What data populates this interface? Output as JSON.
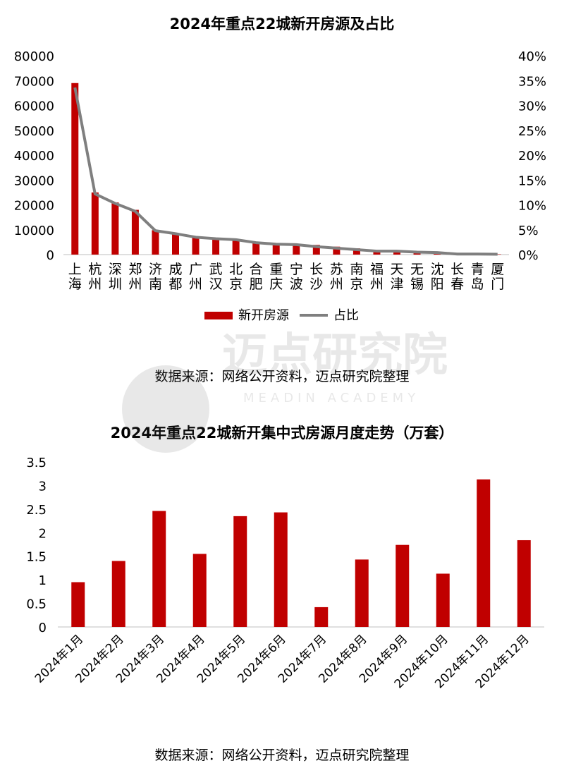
{
  "chart_data": [
    {
      "type": "bar",
      "title": "2024年重点22城新开房源及占比",
      "categories": [
        "上海",
        "杭州",
        "深圳",
        "郑州",
        "济南",
        "成都",
        "广州",
        "武汉",
        "北京",
        "合肥",
        "重庆",
        "宁波",
        "长沙",
        "苏州",
        "南京",
        "福州",
        "天津",
        "无锡",
        "沈阳",
        "长春",
        "青岛",
        "厦门"
      ],
      "series": [
        {
          "name": "新开房源",
          "type": "bar",
          "axis": "left",
          "color": "#c00000",
          "values": [
            69000,
            25000,
            21000,
            18000,
            9800,
            8500,
            7200,
            6500,
            6200,
            4900,
            4300,
            4200,
            3900,
            3200,
            2500,
            1700,
            1400,
            1000,
            800,
            300,
            200,
            150
          ]
        },
        {
          "name": "占比",
          "type": "line",
          "axis": "right",
          "color": "#7f7f7f",
          "values": [
            33.6,
            12.2,
            10.3,
            8.7,
            4.8,
            4.2,
            3.5,
            3.2,
            3.0,
            2.4,
            2.1,
            2.0,
            1.6,
            1.3,
            1.0,
            0.7,
            0.7,
            0.5,
            0.4,
            0.1,
            0.1,
            0.07
          ]
        }
      ],
      "y_ticks": [
        "0",
        "10000",
        "20000",
        "30000",
        "40000",
        "50000",
        "60000",
        "70000",
        "80000"
      ],
      "y2_ticks": [
        "0%",
        "5%",
        "10%",
        "15%",
        "20%",
        "25%",
        "30%",
        "35%",
        "40%"
      ],
      "ylim": [
        0,
        80000
      ],
      "y2lim": [
        0,
        40
      ],
      "grid": false,
      "legend_position": "bottom"
    },
    {
      "type": "bar",
      "title": "2024年重点22城新开集中式房源月度走势（万套）",
      "categories": [
        "2024年1月",
        "2024年2月",
        "2024年3月",
        "2024年4月",
        "2024年5月",
        "2024年6月",
        "2024年7月",
        "2024年8月",
        "2024年9月",
        "2024年10月",
        "2024年11月",
        "2024年12月"
      ],
      "series": [
        {
          "color": "#c00000",
          "values": [
            0.95,
            1.4,
            2.46,
            1.55,
            2.35,
            2.43,
            0.42,
            1.43,
            1.74,
            1.13,
            3.13,
            1.84
          ]
        }
      ],
      "y_ticks": [
        "0",
        "0.5",
        "1",
        "1.5",
        "2",
        "2.5",
        "3",
        "3.5"
      ],
      "ylim": [
        0,
        3.5
      ],
      "grid": false
    }
  ],
  "source_top": "数据来源：网络公开资料，迈点研究院整理",
  "source_bottom": "数据来源：网络公开资料，迈点研究院整理",
  "watermark": {
    "text": "迈点研究院",
    "subtext": "MEADIN ACADEMY"
  }
}
